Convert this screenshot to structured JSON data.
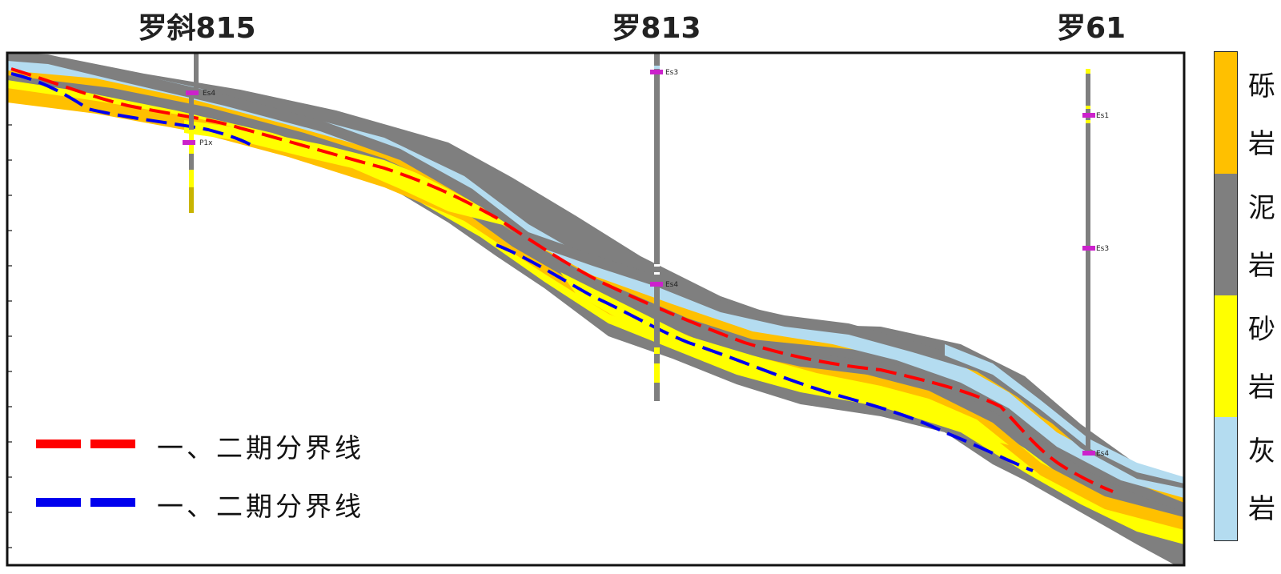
{
  "wells": [
    {
      "name": "罗斜815",
      "markers": [
        "Es4",
        "P1x"
      ]
    },
    {
      "name": "罗813",
      "markers": [
        "Es3",
        "Es4"
      ]
    },
    {
      "name": "罗61",
      "markers": [
        "Es1",
        "Es3",
        "Es4"
      ]
    }
  ],
  "legend": {
    "lines": [
      {
        "label": "一、二期分界线",
        "color": "#ff0000"
      },
      {
        "label": "一、二期分界线",
        "color": "#0000ee"
      }
    ]
  },
  "lithology": [
    {
      "name": "砾岩",
      "chars": [
        "砾",
        "岩"
      ],
      "color": "#ffc000"
    },
    {
      "name": "泥岩",
      "chars": [
        "泥",
        "岩"
      ],
      "color": "#7f7f7f"
    },
    {
      "name": "砂岩",
      "chars": [
        "砂",
        "岩"
      ],
      "color": "#ffff00"
    },
    {
      "name": "灰岩",
      "chars": [
        "灰",
        "岩"
      ],
      "color": "#b4dcf0"
    }
  ]
}
